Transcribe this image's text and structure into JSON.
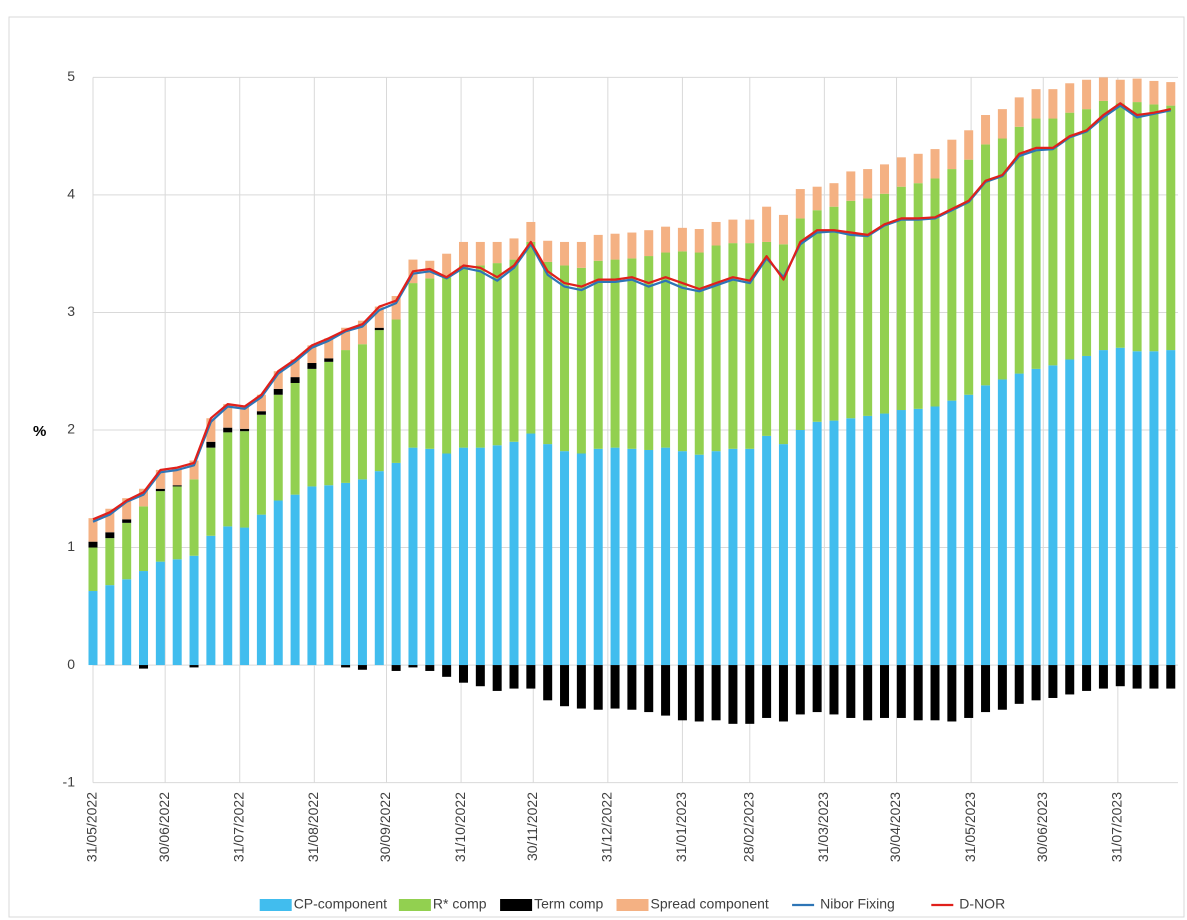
{
  "chart_data": {
    "type": "bar",
    "stacked": true,
    "y_label": "%",
    "grid": true,
    "legend": "bottom",
    "x": [
      "31/05/2022",
      "07/06/2022",
      "14/06/2022",
      "21/06/2022",
      "28/06/2022",
      "05/07/2022",
      "12/07/2022",
      "19/07/2022",
      "26/07/2022",
      "02/08/2022",
      "09/08/2022",
      "16/08/2022",
      "23/08/2022",
      "30/08/2022",
      "06/09/2022",
      "13/09/2022",
      "20/09/2022",
      "27/09/2022",
      "04/10/2022",
      "11/10/2022",
      "18/10/2022",
      "25/10/2022",
      "01/11/2022",
      "08/11/2022",
      "15/11/2022",
      "22/11/2022",
      "29/11/2022",
      "06/12/2022",
      "13/12/2022",
      "20/12/2022",
      "27/12/2022",
      "03/01/2023",
      "10/01/2023",
      "17/01/2023",
      "24/01/2023",
      "31/01/2023",
      "07/02/2023",
      "14/02/2023",
      "21/02/2023",
      "28/02/2023",
      "07/03/2023",
      "14/03/2023",
      "21/03/2023",
      "28/03/2023",
      "04/04/2023",
      "11/04/2023",
      "18/04/2023",
      "25/04/2023",
      "02/05/2023",
      "09/05/2023",
      "16/05/2023",
      "23/05/2023",
      "30/05/2023",
      "06/06/2023",
      "13/06/2023",
      "20/06/2023",
      "27/06/2023",
      "04/07/2023",
      "11/07/2023",
      "18/07/2023",
      "25/07/2023",
      "01/08/2023",
      "08/08/2023",
      "15/08/2023",
      "22/08/2023"
    ],
    "xlim": [
      "31/05/2022",
      "25/08/2023"
    ],
    "xticks": [
      "31/05/2022",
      "30/06/2022",
      "31/07/2022",
      "31/08/2022",
      "30/09/2022",
      "31/10/2022",
      "30/11/2022",
      "31/12/2022",
      "31/01/2023",
      "28/02/2023",
      "31/03/2023",
      "30/04/2023",
      "31/05/2023",
      "30/06/2023",
      "31/07/2023"
    ],
    "ylim": [
      -1,
      5
    ],
    "yticks": [
      -1,
      0,
      1,
      2,
      3,
      4,
      5
    ],
    "series": [
      {
        "name": "CP-component",
        "type": "bar",
        "color": "#41bdee",
        "values": [
          0.63,
          0.68,
          0.73,
          0.8,
          0.88,
          0.9,
          0.93,
          1.1,
          1.18,
          1.17,
          1.28,
          1.4,
          1.45,
          1.52,
          1.53,
          1.55,
          1.58,
          1.65,
          1.72,
          1.85,
          1.84,
          1.8,
          1.85,
          1.85,
          1.87,
          1.9,
          1.97,
          1.88,
          1.82,
          1.8,
          1.84,
          1.85,
          1.84,
          1.83,
          1.85,
          1.82,
          1.79,
          1.82,
          1.84,
          1.84,
          1.95,
          1.88,
          2.0,
          2.07,
          2.08,
          2.1,
          2.12,
          2.14,
          2.17,
          2.18,
          2.2,
          2.25,
          2.3,
          2.38,
          2.43,
          2.48,
          2.52,
          2.55,
          2.6,
          2.63,
          2.68,
          2.7,
          2.67,
          2.67,
          2.68
        ]
      },
      {
        "name": "R* comp",
        "type": "bar",
        "color": "#92d050",
        "values": [
          0.37,
          0.4,
          0.48,
          0.55,
          0.6,
          0.62,
          0.65,
          0.75,
          0.8,
          0.82,
          0.85,
          0.9,
          0.95,
          1.0,
          1.05,
          1.13,
          1.15,
          1.2,
          1.22,
          1.4,
          1.45,
          1.5,
          1.55,
          1.55,
          1.55,
          1.55,
          1.63,
          1.55,
          1.58,
          1.58,
          1.6,
          1.6,
          1.62,
          1.65,
          1.66,
          1.7,
          1.72,
          1.75,
          1.75,
          1.75,
          1.65,
          1.7,
          1.8,
          1.8,
          1.82,
          1.85,
          1.85,
          1.87,
          1.9,
          1.92,
          1.94,
          1.97,
          2.0,
          2.05,
          2.05,
          2.1,
          2.13,
          2.1,
          2.1,
          2.1,
          2.12,
          2.08,
          2.12,
          2.1,
          2.08
        ]
      },
      {
        "name": "Term comp",
        "type": "bar",
        "color": "#000000",
        "values": [
          0.05,
          0.05,
          0.03,
          -0.03,
          0.02,
          0.01,
          -0.02,
          0.05,
          0.04,
          0.02,
          0.03,
          0.05,
          0.05,
          0.05,
          0.03,
          -0.02,
          -0.04,
          0.02,
          -0.05,
          -0.02,
          -0.05,
          -0.1,
          -0.15,
          -0.18,
          -0.22,
          -0.2,
          -0.2,
          -0.3,
          -0.35,
          -0.37,
          -0.38,
          -0.37,
          -0.38,
          -0.4,
          -0.43,
          -0.47,
          -0.48,
          -0.47,
          -0.5,
          -0.5,
          -0.45,
          -0.48,
          -0.42,
          -0.4,
          -0.42,
          -0.45,
          -0.47,
          -0.45,
          -0.45,
          -0.47,
          -0.47,
          -0.48,
          -0.45,
          -0.4,
          -0.38,
          -0.33,
          -0.3,
          -0.28,
          -0.25,
          -0.22,
          -0.2,
          -0.18,
          -0.2,
          -0.2,
          -0.2
        ]
      },
      {
        "name": "Spread component",
        "type": "bar",
        "color": "#f4b183",
        "values": [
          0.2,
          0.2,
          0.18,
          0.15,
          0.16,
          0.15,
          0.16,
          0.2,
          0.2,
          0.19,
          0.14,
          0.15,
          0.15,
          0.15,
          0.17,
          0.19,
          0.2,
          0.18,
          0.2,
          0.2,
          0.15,
          0.2,
          0.2,
          0.2,
          0.18,
          0.18,
          0.17,
          0.18,
          0.2,
          0.22,
          0.22,
          0.22,
          0.22,
          0.22,
          0.22,
          0.2,
          0.2,
          0.2,
          0.2,
          0.2,
          0.3,
          0.25,
          0.25,
          0.2,
          0.2,
          0.25,
          0.25,
          0.25,
          0.25,
          0.25,
          0.25,
          0.25,
          0.25,
          0.25,
          0.25,
          0.25,
          0.25,
          0.25,
          0.25,
          0.25,
          0.2,
          0.2,
          0.2,
          0.2,
          0.2
        ]
      },
      {
        "name": "Nibor Fixing",
        "type": "line",
        "color": "#2e75b6",
        "values": [
          1.22,
          1.28,
          1.39,
          1.45,
          1.64,
          1.66,
          1.7,
          2.07,
          2.2,
          2.18,
          2.28,
          2.48,
          2.58,
          2.7,
          2.76,
          2.84,
          2.88,
          3.02,
          3.08,
          3.33,
          3.35,
          3.29,
          3.38,
          3.35,
          3.27,
          3.38,
          3.58,
          3.32,
          3.22,
          3.19,
          3.26,
          3.26,
          3.28,
          3.22,
          3.27,
          3.21,
          3.18,
          3.23,
          3.28,
          3.25,
          3.46,
          3.3,
          3.58,
          3.68,
          3.69,
          3.66,
          3.65,
          3.74,
          3.79,
          3.79,
          3.8,
          3.87,
          3.94,
          4.11,
          4.16,
          4.33,
          4.38,
          4.39,
          4.49,
          4.54,
          4.66,
          4.76,
          4.66,
          4.69,
          4.72
        ]
      },
      {
        "name": "D-NOR",
        "type": "line",
        "color": "#e0201b",
        "values": [
          1.24,
          1.3,
          1.4,
          1.47,
          1.66,
          1.68,
          1.72,
          2.1,
          2.22,
          2.2,
          2.3,
          2.5,
          2.6,
          2.72,
          2.78,
          2.85,
          2.9,
          3.05,
          3.1,
          3.35,
          3.37,
          3.3,
          3.4,
          3.38,
          3.3,
          3.4,
          3.6,
          3.35,
          3.25,
          3.22,
          3.28,
          3.28,
          3.3,
          3.25,
          3.3,
          3.25,
          3.2,
          3.25,
          3.3,
          3.27,
          3.48,
          3.28,
          3.6,
          3.7,
          3.7,
          3.68,
          3.66,
          3.75,
          3.8,
          3.8,
          3.81,
          3.88,
          3.95,
          4.12,
          4.17,
          4.35,
          4.4,
          4.4,
          4.5,
          4.55,
          4.68,
          4.78,
          4.68,
          4.7,
          4.73
        ]
      }
    ]
  }
}
